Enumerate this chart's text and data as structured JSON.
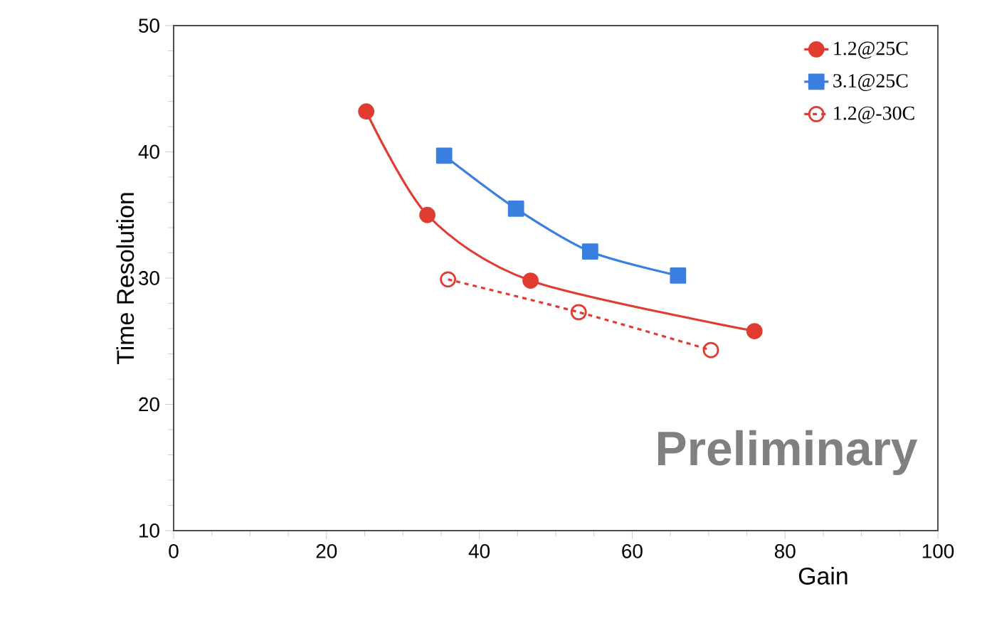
{
  "chart_data": {
    "type": "line",
    "xlabel": "Gain",
    "ylabel": "Time Resolution",
    "xlim": [
      0,
      100
    ],
    "xticks": [
      0,
      20,
      40,
      60,
      80,
      100
    ],
    "ylim": [
      10,
      50
    ],
    "yticks": [
      10,
      20,
      30,
      40,
      50
    ],
    "legend": "top right",
    "grid": false,
    "annotations": [
      "Preliminary"
    ],
    "series": [
      {
        "name": "1.2@25C",
        "color": "#e03c31",
        "marker": "circle",
        "line_style": "solid",
        "x": [
          25.2,
          33.2,
          46.7,
          76.0
        ],
        "values": [
          43.2,
          35.0,
          29.8,
          25.8
        ]
      },
      {
        "name": "3.1@25C",
        "color": "#3a7fe0",
        "marker": "square",
        "line_style": "solid",
        "x": [
          35.4,
          44.8,
          54.5,
          66.0
        ],
        "values": [
          39.7,
          35.5,
          32.1,
          30.2
        ]
      },
      {
        "name": "1.2@-30C",
        "color": "#e03c31",
        "marker": "open circle",
        "line_style": "dashed",
        "x": [
          35.9,
          53.0,
          70.3
        ],
        "values": [
          29.9,
          27.3,
          24.3
        ]
      }
    ]
  }
}
